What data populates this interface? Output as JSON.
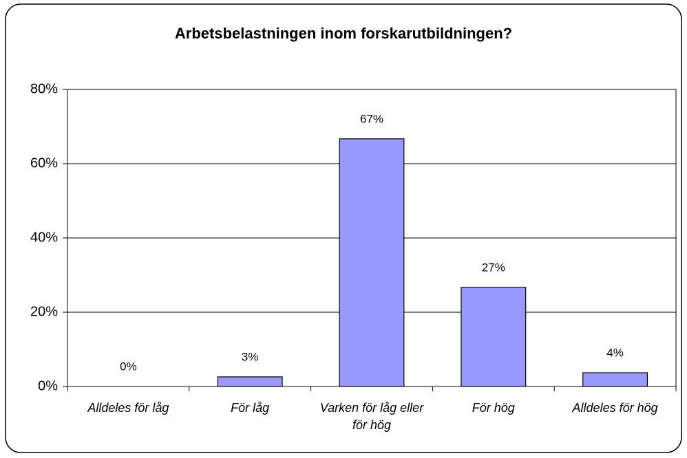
{
  "chart_data": {
    "type": "bar",
    "title": "Arbetsbelastningen inom forskarutbildningen?",
    "categories": [
      "Alldeles för låg",
      "För låg",
      "Varken för låg eller för hög",
      "För hög",
      "Alldeles för hög"
    ],
    "values": [
      0,
      2.6,
      66.7,
      26.7,
      3.7
    ],
    "value_labels": [
      "0%",
      "3%",
      "67%",
      "27%",
      "4%"
    ],
    "color": "#9999ff",
    "ylim": [
      0,
      80
    ],
    "yticks": [
      {
        "value": 0,
        "label": "0%"
      },
      {
        "value": 20,
        "label": "20%"
      },
      {
        "value": 40,
        "label": "40%"
      },
      {
        "value": 60,
        "label": "60%"
      },
      {
        "value": 80,
        "label": "80%"
      }
    ],
    "grid": true
  }
}
